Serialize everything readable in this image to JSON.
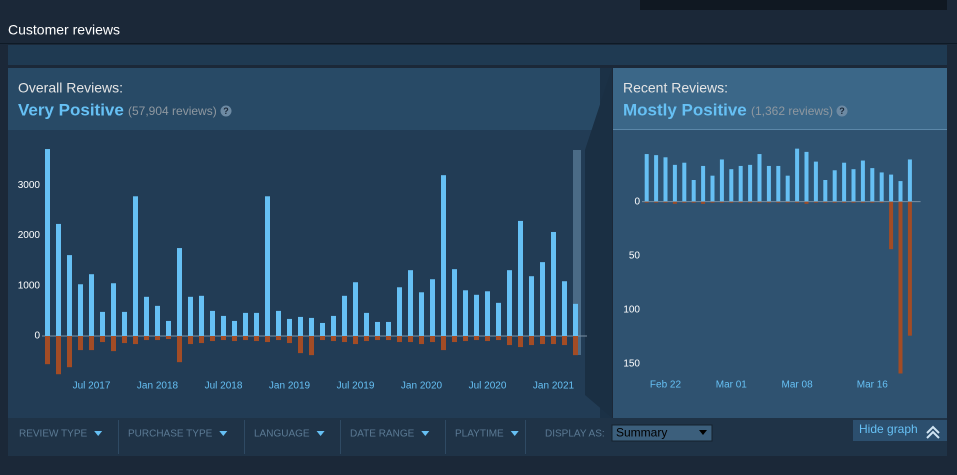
{
  "header": {
    "title": "Customer reviews"
  },
  "overall": {
    "label": "Overall Reviews:",
    "rating": "Very Positive",
    "count": "(57,904 reviews)",
    "help_icon": "?"
  },
  "recent": {
    "label": "Recent Reviews:",
    "rating": "Mostly Positive",
    "count": "(1,362 reviews)",
    "help_icon": "?"
  },
  "chart_data": [
    {
      "type": "bar",
      "categories": [
        null,
        null,
        null,
        null,
        "Jul 2017",
        null,
        null,
        null,
        null,
        null,
        "Jan 2018",
        null,
        null,
        null,
        null,
        null,
        "Jul 2018",
        null,
        null,
        null,
        null,
        null,
        "Jan 2019",
        null,
        null,
        null,
        null,
        null,
        "Jul 2019",
        null,
        null,
        null,
        null,
        null,
        "Jan 2020",
        null,
        null,
        null,
        null,
        null,
        "Jul 2020",
        null,
        null,
        null,
        null,
        null,
        "Jan 2021",
        null,
        null
      ],
      "series": [
        {
          "color": "#66c0f4",
          "values": [
            3720,
            2230,
            1610,
            1030,
            1230,
            480,
            1050,
            480,
            2780,
            780,
            600,
            300,
            1750,
            780,
            800,
            500,
            400,
            300,
            460,
            460,
            2780,
            500,
            340,
            380,
            360,
            260,
            400,
            800,
            1070,
            460,
            280,
            280,
            970,
            1310,
            870,
            1130,
            3200,
            1330,
            910,
            820,
            890,
            660,
            1310,
            2290,
            1190,
            1470,
            2070,
            1090,
            640
          ]
        },
        {
          "color": "#a34c25",
          "values": [
            -560,
            -760,
            -620,
            -280,
            -280,
            -120,
            -300,
            -140,
            -160,
            -80,
            -80,
            -60,
            -520,
            -160,
            -140,
            -100,
            -80,
            -100,
            -80,
            -100,
            -120,
            -80,
            -140,
            -340,
            -380,
            -80,
            -100,
            -120,
            -160,
            -100,
            -80,
            -80,
            -120,
            -120,
            -160,
            -120,
            -280,
            -120,
            -100,
            -80,
            -100,
            -80,
            -180,
            -220,
            -180,
            -160,
            -160,
            -180,
            -380
          ]
        }
      ],
      "ylim": [
        -875,
        3900
      ],
      "yticks": [
        0,
        1000,
        2000,
        3000
      ],
      "grid": false
    },
    {
      "type": "bar",
      "categories": [
        null,
        null,
        "Feb 22",
        null,
        null,
        null,
        null,
        null,
        null,
        "Mar 01",
        null,
        null,
        null,
        null,
        null,
        null,
        "Mar 08",
        null,
        null,
        null,
        null,
        null,
        null,
        null,
        "Mar 16",
        null,
        null,
        null,
        null
      ],
      "series": [
        {
          "color": "#66c0f4",
          "values": [
            44,
            43,
            41,
            34,
            36,
            20,
            33,
            24,
            39,
            30,
            33,
            34,
            44,
            33,
            33,
            24,
            49,
            46,
            37,
            20,
            29,
            36,
            30,
            38,
            31,
            27,
            25,
            19,
            39
          ]
        },
        {
          "color": "#a34c25",
          "values": [
            -1,
            -1,
            -1,
            -2,
            -1,
            -1,
            -2,
            -1,
            -1,
            -1,
            -1,
            -1,
            -1,
            -1,
            -1,
            -1,
            -1,
            -2,
            -1,
            -1,
            -1,
            -1,
            -1,
            -1,
            -1,
            -1,
            -44,
            -159,
            -124
          ]
        }
      ],
      "ylim": [
        -165,
        57
      ],
      "yticks": [
        0,
        {
          "value": -50,
          "label": "50"
        },
        {
          "value": -100,
          "label": "100"
        },
        {
          "value": -150,
          "label": "150"
        }
      ],
      "grid": false
    }
  ],
  "filters": {
    "items": [
      "REVIEW TYPE",
      "PURCHASE TYPE",
      "LANGUAGE",
      "DATE RANGE",
      "PLAYTIME"
    ],
    "display_as": "DISPLAY AS:",
    "selected": "Summary",
    "hide_graph": "Hide graph"
  }
}
